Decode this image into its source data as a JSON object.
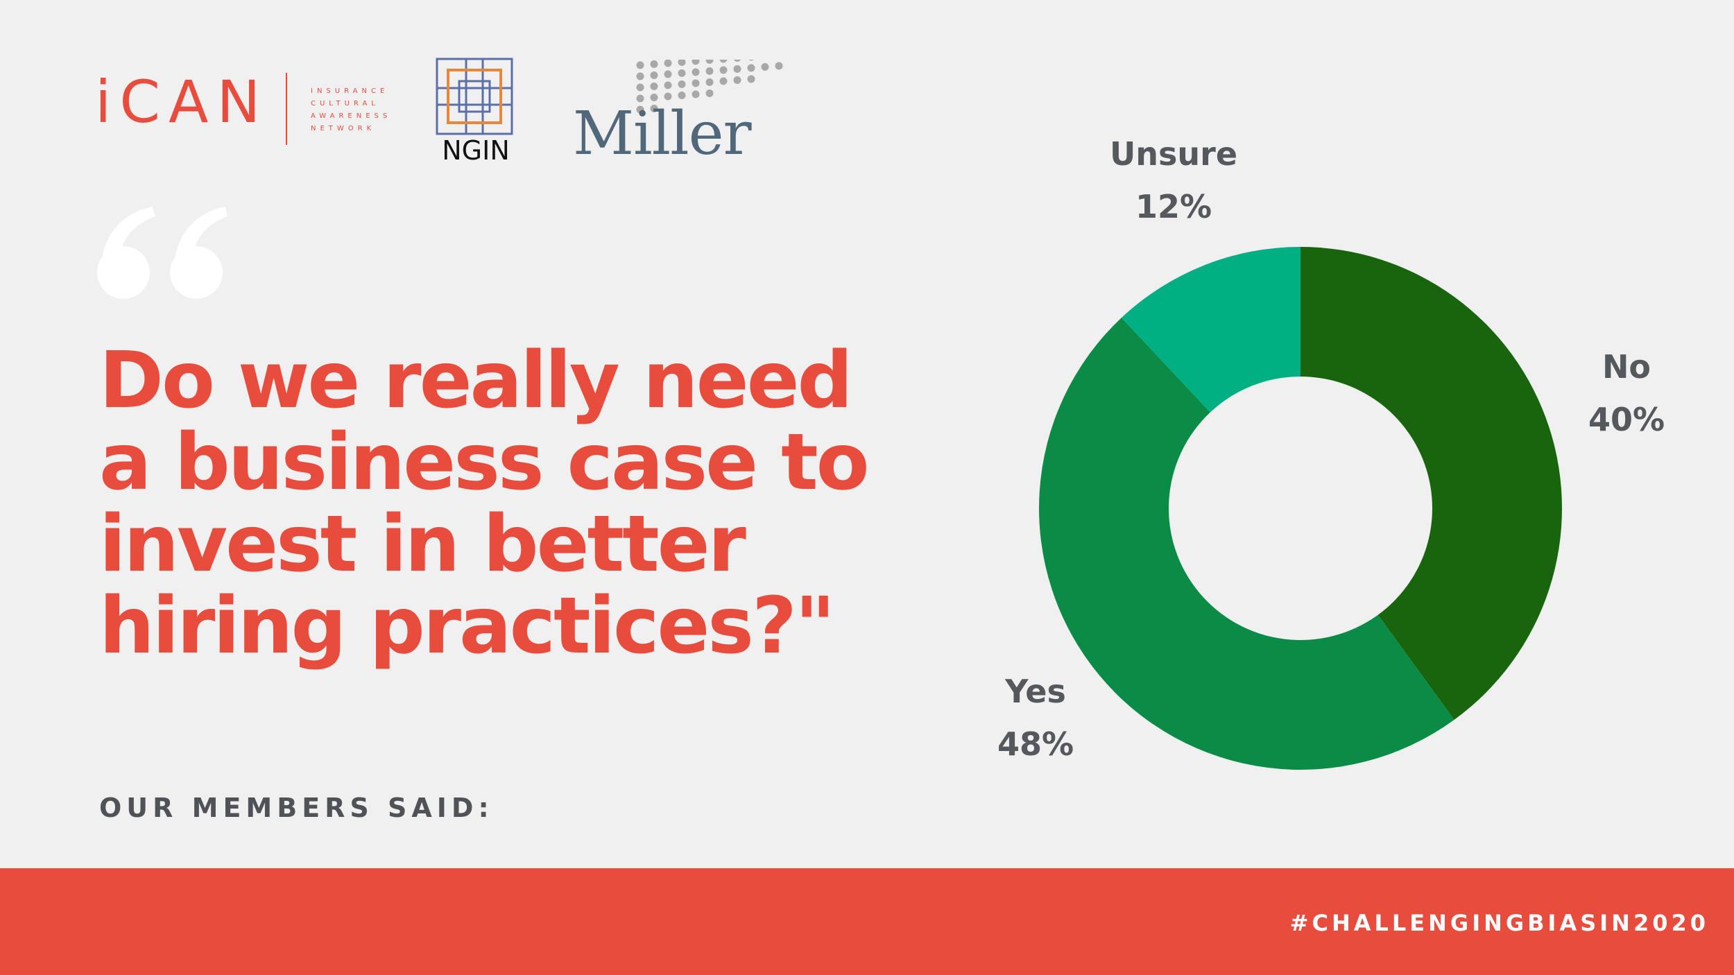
{
  "logos": {
    "ican": {
      "wordmark": "iCAN",
      "tagline": "INSURANCE\nCULTURAL\nAWARENESS\nNETWORK"
    },
    "ngin": {
      "wordmark": "NGIN"
    },
    "miller": {
      "wordmark": "Miller"
    }
  },
  "question": "Do we really need a business case to invest in better hiring practices?\"",
  "members_label": "OUR MEMBERS SAID:",
  "hashtag": "#CHALLENGINGBIASIN2020",
  "colors": {
    "background": "#f0f0f0",
    "accent_red": "#e84c3d",
    "label_gray": "#55595e"
  },
  "chart_data": {
    "type": "pie",
    "donut": true,
    "title": "",
    "slices": [
      {
        "label": "No",
        "value": 40,
        "display": "40%",
        "color": "#19650e"
      },
      {
        "label": "Yes",
        "value": 48,
        "display": "48%",
        "color": "#0a8c47"
      },
      {
        "label": "Unsure",
        "value": 12,
        "display": "12%",
        "color": "#00b083"
      }
    ],
    "start_angle_deg": 0,
    "direction": "clockwise",
    "legend": "none"
  }
}
